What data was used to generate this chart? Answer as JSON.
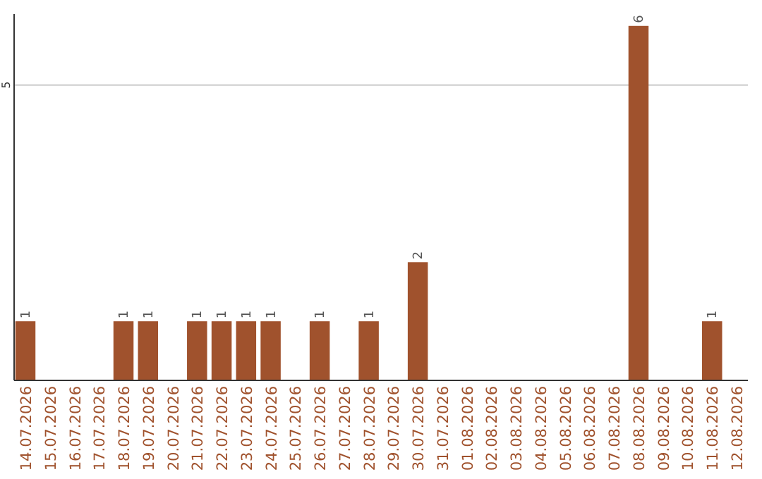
{
  "chart_data": {
    "type": "bar",
    "categories": [
      "14.07.2026",
      "15.07.2026",
      "16.07.2026",
      "17.07.2026",
      "18.07.2026",
      "19.07.2026",
      "20.07.2026",
      "21.07.2026",
      "22.07.2026",
      "23.07.2026",
      "24.07.2026",
      "25.07.2026",
      "26.07.2026",
      "27.07.2026",
      "28.07.2026",
      "29.07.2026",
      "30.07.2026",
      "31.07.2026",
      "01.08.2026",
      "02.08.2026",
      "03.08.2026",
      "04.08.2026",
      "05.08.2026",
      "06.08.2026",
      "07.08.2026",
      "08.08.2026",
      "09.08.2026",
      "10.08.2026",
      "11.08.2026",
      "12.08.2026"
    ],
    "values": [
      1,
      0,
      0,
      0,
      1,
      1,
      0,
      1,
      1,
      1,
      1,
      0,
      1,
      0,
      1,
      0,
      2,
      0,
      0,
      0,
      0,
      0,
      0,
      0,
      0,
      6,
      0,
      0,
      1,
      0
    ],
    "value_labels": [
      "1",
      null,
      null,
      null,
      "1",
      "1",
      null,
      "1",
      "1",
      "1",
      "1",
      null,
      "1",
      null,
      "1",
      null,
      "2",
      null,
      null,
      null,
      null,
      null,
      null,
      null,
      null,
      "6",
      null,
      null,
      "1",
      null
    ],
    "color": "#a0522d",
    "ylim": [
      0,
      6.2
    ],
    "yticks": [
      5
    ],
    "grid": "y"
  }
}
